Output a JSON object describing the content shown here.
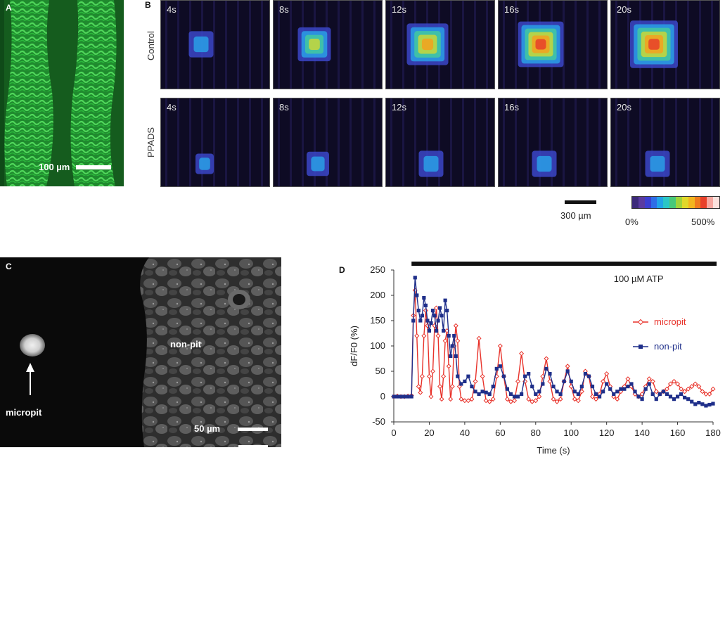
{
  "panels": {
    "a": {
      "label": "A",
      "scalebar_label": "100 µm"
    },
    "b": {
      "label": "B",
      "rows": [
        {
          "label": "Control",
          "times": [
            "4s",
            "8s",
            "12s",
            "16s",
            "20s"
          ],
          "blob_levels": [
            0.35,
            0.55,
            0.75,
            0.85,
            0.9
          ]
        },
        {
          "label": "PPADS",
          "times": [
            "4s",
            "8s",
            "12s",
            "16s",
            "20s"
          ],
          "blob_levels": [
            0.2,
            0.3,
            0.35,
            0.35,
            0.35
          ]
        }
      ],
      "scalebar_label": "300 µm",
      "colorbar": {
        "min_label": "0%",
        "max_label": "500%",
        "colors": [
          "#3c2a7a",
          "#5a3ba0",
          "#3b3fd0",
          "#2f6de6",
          "#22a3e8",
          "#2bc6c6",
          "#47c97a",
          "#9fd33a",
          "#e1d82a",
          "#f2b51e",
          "#ef7a1e",
          "#e8402a",
          "#f6a7a0",
          "#fbe1dd"
        ]
      }
    },
    "c": {
      "label": "C",
      "micropit_label": "micropit",
      "nonpit_label": "non-pit",
      "scalebar_label": "50 µm"
    },
    "d": {
      "label": "D",
      "treatment_label": "100 µM ATP"
    }
  },
  "chart_data": {
    "type": "line",
    "xlabel": "Time (s)",
    "ylabel": "dF/F0 (%)",
    "xlim": [
      0,
      180
    ],
    "ylim": [
      -50,
      250
    ],
    "xticks": [
      0,
      20,
      40,
      60,
      80,
      100,
      120,
      140,
      160,
      180
    ],
    "yticks": [
      -50,
      0,
      50,
      100,
      150,
      200,
      250
    ],
    "treatment_bar": {
      "label": "100 µM ATP",
      "x_start": 10,
      "x_end": 182
    },
    "legend": "right",
    "series": [
      {
        "name": "micropit",
        "color": "#e8322a",
        "marker": "diamond-open",
        "points": [
          [
            0,
            0
          ],
          [
            2,
            1
          ],
          [
            4,
            0
          ],
          [
            6,
            0
          ],
          [
            8,
            1
          ],
          [
            10,
            2
          ],
          [
            11,
            160
          ],
          [
            12,
            210
          ],
          [
            13,
            120
          ],
          [
            14,
            20
          ],
          [
            15,
            8
          ],
          [
            16,
            40
          ],
          [
            17,
            120
          ],
          [
            18,
            170
          ],
          [
            19,
            140
          ],
          [
            20,
            40
          ],
          [
            21,
            0
          ],
          [
            22,
            50
          ],
          [
            23,
            140
          ],
          [
            24,
            175
          ],
          [
            25,
            120
          ],
          [
            26,
            20
          ],
          [
            27,
            -5
          ],
          [
            28,
            40
          ],
          [
            29,
            110
          ],
          [
            30,
            130
          ],
          [
            31,
            60
          ],
          [
            32,
            -5
          ],
          [
            33,
            20
          ],
          [
            34,
            100
          ],
          [
            35,
            140
          ],
          [
            36,
            110
          ],
          [
            37,
            20
          ],
          [
            38,
            -5
          ],
          [
            40,
            -8
          ],
          [
            42,
            -8
          ],
          [
            44,
            -5
          ],
          [
            46,
            30
          ],
          [
            48,
            115
          ],
          [
            50,
            40
          ],
          [
            52,
            -8
          ],
          [
            54,
            -10
          ],
          [
            56,
            -5
          ],
          [
            58,
            40
          ],
          [
            60,
            100
          ],
          [
            62,
            40
          ],
          [
            64,
            -5
          ],
          [
            66,
            -10
          ],
          [
            68,
            -8
          ],
          [
            70,
            30
          ],
          [
            72,
            85
          ],
          [
            74,
            30
          ],
          [
            76,
            -5
          ],
          [
            78,
            -10
          ],
          [
            80,
            -8
          ],
          [
            82,
            0
          ],
          [
            84,
            40
          ],
          [
            86,
            75
          ],
          [
            88,
            30
          ],
          [
            90,
            -5
          ],
          [
            92,
            -10
          ],
          [
            94,
            -5
          ],
          [
            96,
            30
          ],
          [
            98,
            60
          ],
          [
            100,
            20
          ],
          [
            102,
            -5
          ],
          [
            104,
            -8
          ],
          [
            106,
            10
          ],
          [
            108,
            50
          ],
          [
            110,
            40
          ],
          [
            112,
            0
          ],
          [
            114,
            -5
          ],
          [
            116,
            5
          ],
          [
            118,
            30
          ],
          [
            120,
            45
          ],
          [
            122,
            20
          ],
          [
            124,
            0
          ],
          [
            126,
            -5
          ],
          [
            128,
            10
          ],
          [
            130,
            20
          ],
          [
            132,
            35
          ],
          [
            134,
            20
          ],
          [
            136,
            5
          ],
          [
            138,
            0
          ],
          [
            140,
            5
          ],
          [
            142,
            20
          ],
          [
            144,
            35
          ],
          [
            146,
            30
          ],
          [
            148,
            10
          ],
          [
            150,
            5
          ],
          [
            152,
            10
          ],
          [
            154,
            15
          ],
          [
            156,
            25
          ],
          [
            158,
            30
          ],
          [
            160,
            25
          ],
          [
            162,
            15
          ],
          [
            164,
            10
          ],
          [
            166,
            15
          ],
          [
            168,
            20
          ],
          [
            170,
            25
          ],
          [
            172,
            20
          ],
          [
            174,
            10
          ],
          [
            176,
            5
          ],
          [
            178,
            5
          ],
          [
            180,
            15
          ]
        ]
      },
      {
        "name": "non-pit",
        "color": "#1f2f8a",
        "marker": "square-filled",
        "points": [
          [
            0,
            0
          ],
          [
            2,
            0
          ],
          [
            4,
            0
          ],
          [
            6,
            0
          ],
          [
            8,
            0
          ],
          [
            10,
            0
          ],
          [
            11,
            150
          ],
          [
            12,
            235
          ],
          [
            13,
            200
          ],
          [
            14,
            170
          ],
          [
            15,
            150
          ],
          [
            16,
            160
          ],
          [
            17,
            195
          ],
          [
            18,
            180
          ],
          [
            19,
            150
          ],
          [
            20,
            130
          ],
          [
            21,
            145
          ],
          [
            22,
            170
          ],
          [
            23,
            160
          ],
          [
            24,
            130
          ],
          [
            25,
            150
          ],
          [
            26,
            175
          ],
          [
            27,
            160
          ],
          [
            28,
            130
          ],
          [
            29,
            190
          ],
          [
            30,
            170
          ],
          [
            31,
            120
          ],
          [
            32,
            80
          ],
          [
            33,
            100
          ],
          [
            34,
            120
          ],
          [
            35,
            80
          ],
          [
            36,
            40
          ],
          [
            38,
            25
          ],
          [
            40,
            30
          ],
          [
            42,
            40
          ],
          [
            44,
            20
          ],
          [
            46,
            10
          ],
          [
            48,
            5
          ],
          [
            50,
            10
          ],
          [
            52,
            8
          ],
          [
            54,
            5
          ],
          [
            56,
            20
          ],
          [
            58,
            55
          ],
          [
            60,
            60
          ],
          [
            62,
            40
          ],
          [
            64,
            15
          ],
          [
            66,
            5
          ],
          [
            68,
            0
          ],
          [
            70,
            0
          ],
          [
            72,
            5
          ],
          [
            74,
            40
          ],
          [
            76,
            45
          ],
          [
            78,
            20
          ],
          [
            80,
            5
          ],
          [
            82,
            10
          ],
          [
            84,
            25
          ],
          [
            86,
            55
          ],
          [
            88,
            45
          ],
          [
            90,
            20
          ],
          [
            92,
            10
          ],
          [
            94,
            5
          ],
          [
            96,
            30
          ],
          [
            98,
            50
          ],
          [
            100,
            30
          ],
          [
            102,
            10
          ],
          [
            104,
            5
          ],
          [
            106,
            20
          ],
          [
            108,
            45
          ],
          [
            110,
            40
          ],
          [
            112,
            20
          ],
          [
            114,
            5
          ],
          [
            116,
            0
          ],
          [
            118,
            10
          ],
          [
            120,
            25
          ],
          [
            122,
            15
          ],
          [
            124,
            5
          ],
          [
            126,
            10
          ],
          [
            128,
            15
          ],
          [
            130,
            15
          ],
          [
            132,
            20
          ],
          [
            134,
            25
          ],
          [
            136,
            10
          ],
          [
            138,
            0
          ],
          [
            140,
            -5
          ],
          [
            142,
            15
          ],
          [
            144,
            25
          ],
          [
            146,
            5
          ],
          [
            148,
            -5
          ],
          [
            150,
            5
          ],
          [
            152,
            10
          ],
          [
            154,
            5
          ],
          [
            156,
            0
          ],
          [
            158,
            -5
          ],
          [
            160,
            0
          ],
          [
            162,
            5
          ],
          [
            164,
            -2
          ],
          [
            166,
            -5
          ],
          [
            168,
            -10
          ],
          [
            170,
            -15
          ],
          [
            172,
            -12
          ],
          [
            174,
            -15
          ],
          [
            176,
            -18
          ],
          [
            178,
            -16
          ],
          [
            180,
            -14
          ]
        ]
      }
    ]
  }
}
